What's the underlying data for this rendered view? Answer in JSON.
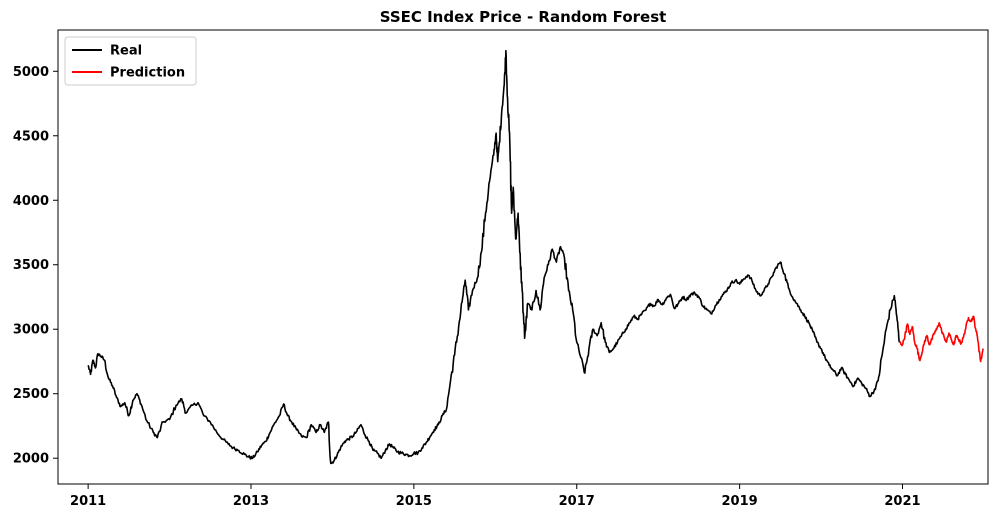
{
  "chart_data": {
    "type": "line",
    "title": "SSEC Index Price - Random Forest",
    "xlabel": "",
    "ylabel": "",
    "xlim": [
      2010.63,
      2022.05
    ],
    "ylim": [
      1800,
      5320
    ],
    "x_ticks": [
      2011,
      2013,
      2015,
      2017,
      2019,
      2021
    ],
    "y_ticks": [
      2000,
      2500,
      3000,
      3500,
      4000,
      4500,
      5000
    ],
    "grid": false,
    "legend_position": "top-left",
    "series": [
      {
        "name": "Real",
        "color": "#000000",
        "points": [
          [
            2011.0,
            2720
          ],
          [
            2011.03,
            2650
          ],
          [
            2011.06,
            2760
          ],
          [
            2011.09,
            2700
          ],
          [
            2011.12,
            2810
          ],
          [
            2011.16,
            2790
          ],
          [
            2011.2,
            2760
          ],
          [
            2011.25,
            2620
          ],
          [
            2011.3,
            2560
          ],
          [
            2011.35,
            2470
          ],
          [
            2011.4,
            2400
          ],
          [
            2011.45,
            2430
          ],
          [
            2011.5,
            2330
          ],
          [
            2011.55,
            2450
          ],
          [
            2011.6,
            2500
          ],
          [
            2011.65,
            2420
          ],
          [
            2011.72,
            2290
          ],
          [
            2011.8,
            2200
          ],
          [
            2011.85,
            2160
          ],
          [
            2011.92,
            2280
          ],
          [
            2012.0,
            2300
          ],
          [
            2012.08,
            2410
          ],
          [
            2012.15,
            2460
          ],
          [
            2012.2,
            2350
          ],
          [
            2012.28,
            2410
          ],
          [
            2012.35,
            2430
          ],
          [
            2012.42,
            2330
          ],
          [
            2012.5,
            2280
          ],
          [
            2012.58,
            2200
          ],
          [
            2012.65,
            2150
          ],
          [
            2012.72,
            2110
          ],
          [
            2012.78,
            2080
          ],
          [
            2012.85,
            2060
          ],
          [
            2012.92,
            2030
          ],
          [
            2012.97,
            2010
          ],
          [
            2013.02,
            2000
          ],
          [
            2013.08,
            2050
          ],
          [
            2013.13,
            2100
          ],
          [
            2013.18,
            2130
          ],
          [
            2013.22,
            2180
          ],
          [
            2013.28,
            2260
          ],
          [
            2013.35,
            2330
          ],
          [
            2013.4,
            2420
          ],
          [
            2013.45,
            2330
          ],
          [
            2013.5,
            2280
          ],
          [
            2013.56,
            2220
          ],
          [
            2013.62,
            2170
          ],
          [
            2013.68,
            2160
          ],
          [
            2013.74,
            2260
          ],
          [
            2013.8,
            2200
          ],
          [
            2013.85,
            2260
          ],
          [
            2013.9,
            2200
          ],
          [
            2013.95,
            2280
          ],
          [
            2013.98,
            1960
          ],
          [
            2014.02,
            1980
          ],
          [
            2014.06,
            2030
          ],
          [
            2014.1,
            2080
          ],
          [
            2014.15,
            2130
          ],
          [
            2014.2,
            2150
          ],
          [
            2014.25,
            2170
          ],
          [
            2014.3,
            2210
          ],
          [
            2014.35,
            2260
          ],
          [
            2014.4,
            2180
          ],
          [
            2014.45,
            2130
          ],
          [
            2014.5,
            2060
          ],
          [
            2014.55,
            2040
          ],
          [
            2014.6,
            2000
          ],
          [
            2014.65,
            2060
          ],
          [
            2014.7,
            2110
          ],
          [
            2014.75,
            2080
          ],
          [
            2014.8,
            2050
          ],
          [
            2014.85,
            2040
          ],
          [
            2014.9,
            2030
          ],
          [
            2014.95,
            2020
          ],
          [
            2015.0,
            2040
          ],
          [
            2015.05,
            2040
          ],
          [
            2015.1,
            2080
          ],
          [
            2015.15,
            2120
          ],
          [
            2015.2,
            2170
          ],
          [
            2015.25,
            2220
          ],
          [
            2015.3,
            2260
          ],
          [
            2015.35,
            2330
          ],
          [
            2015.4,
            2380
          ],
          [
            2015.45,
            2600
          ],
          [
            2015.5,
            2800
          ],
          [
            2015.55,
            3020
          ],
          [
            2015.6,
            3250
          ],
          [
            2015.63,
            3380
          ],
          [
            2015.67,
            3150
          ],
          [
            2015.72,
            3300
          ],
          [
            2015.78,
            3400
          ],
          [
            2015.83,
            3600
          ],
          [
            2015.88,
            3900
          ],
          [
            2015.93,
            4150
          ],
          [
            2015.98,
            4350
          ],
          [
            2016.01,
            4520
          ],
          [
            2016.03,
            4300
          ],
          [
            2016.05,
            4450
          ],
          [
            2016.08,
            4700
          ],
          [
            2016.11,
            4900
          ],
          [
            2016.13,
            5160
          ],
          [
            2016.15,
            4800
          ],
          [
            2016.18,
            4400
          ],
          [
            2016.2,
            3900
          ],
          [
            2016.22,
            4100
          ],
          [
            2016.25,
            3700
          ],
          [
            2016.28,
            3900
          ],
          [
            2016.3,
            3600
          ],
          [
            2016.33,
            3300
          ],
          [
            2016.36,
            2930
          ],
          [
            2016.4,
            3200
          ],
          [
            2016.45,
            3150
          ],
          [
            2016.5,
            3300
          ],
          [
            2016.55,
            3150
          ],
          [
            2016.6,
            3400
          ],
          [
            2016.65,
            3500
          ],
          [
            2016.7,
            3620
          ],
          [
            2016.75,
            3520
          ],
          [
            2016.8,
            3640
          ],
          [
            2016.85,
            3550
          ],
          [
            2016.9,
            3300
          ],
          [
            2016.95,
            3150
          ],
          [
            2017.0,
            2900
          ],
          [
            2017.05,
            2780
          ],
          [
            2017.1,
            2660
          ],
          [
            2017.15,
            2850
          ],
          [
            2017.2,
            3000
          ],
          [
            2017.25,
            2950
          ],
          [
            2017.3,
            3050
          ],
          [
            2017.35,
            2900
          ],
          [
            2017.4,
            2820
          ],
          [
            2017.45,
            2850
          ],
          [
            2017.5,
            2900
          ],
          [
            2017.55,
            2950
          ],
          [
            2017.6,
            3000
          ],
          [
            2017.65,
            3050
          ],
          [
            2017.7,
            3100
          ],
          [
            2017.75,
            3080
          ],
          [
            2017.8,
            3120
          ],
          [
            2017.85,
            3150
          ],
          [
            2017.9,
            3200
          ],
          [
            2017.95,
            3180
          ],
          [
            2018.0,
            3230
          ],
          [
            2018.05,
            3190
          ],
          [
            2018.1,
            3240
          ],
          [
            2018.15,
            3270
          ],
          [
            2018.2,
            3160
          ],
          [
            2018.25,
            3200
          ],
          [
            2018.3,
            3250
          ],
          [
            2018.35,
            3230
          ],
          [
            2018.4,
            3270
          ],
          [
            2018.45,
            3280
          ],
          [
            2018.5,
            3250
          ],
          [
            2018.55,
            3180
          ],
          [
            2018.6,
            3150
          ],
          [
            2018.65,
            3120
          ],
          [
            2018.7,
            3180
          ],
          [
            2018.75,
            3230
          ],
          [
            2018.8,
            3270
          ],
          [
            2018.85,
            3310
          ],
          [
            2018.9,
            3360
          ],
          [
            2018.95,
            3380
          ],
          [
            2019.0,
            3350
          ],
          [
            2019.05,
            3390
          ],
          [
            2019.1,
            3420
          ],
          [
            2019.15,
            3380
          ],
          [
            2019.2,
            3300
          ],
          [
            2019.25,
            3260
          ],
          [
            2019.3,
            3300
          ],
          [
            2019.35,
            3350
          ],
          [
            2019.4,
            3410
          ],
          [
            2019.45,
            3480
          ],
          [
            2019.5,
            3520
          ],
          [
            2019.55,
            3430
          ],
          [
            2019.6,
            3320
          ],
          [
            2019.65,
            3250
          ],
          [
            2019.7,
            3200
          ],
          [
            2019.75,
            3150
          ],
          [
            2019.8,
            3100
          ],
          [
            2019.85,
            3050
          ],
          [
            2019.9,
            2980
          ],
          [
            2019.95,
            2900
          ],
          [
            2020.0,
            2850
          ],
          [
            2020.05,
            2780
          ],
          [
            2020.1,
            2720
          ],
          [
            2020.15,
            2680
          ],
          [
            2020.2,
            2640
          ],
          [
            2020.25,
            2700
          ],
          [
            2020.3,
            2650
          ],
          [
            2020.35,
            2600
          ],
          [
            2020.4,
            2560
          ],
          [
            2020.45,
            2620
          ],
          [
            2020.5,
            2580
          ],
          [
            2020.55,
            2540
          ],
          [
            2020.6,
            2480
          ],
          [
            2020.65,
            2520
          ],
          [
            2020.7,
            2600
          ],
          [
            2020.75,
            2800
          ],
          [
            2020.8,
            3000
          ],
          [
            2020.85,
            3150
          ],
          [
            2020.9,
            3260
          ],
          [
            2020.93,
            3100
          ],
          [
            2020.96,
            2900
          ]
        ]
      },
      {
        "name": "Prediction",
        "color": "#ff0000",
        "points": [
          [
            2020.96,
            2900
          ],
          [
            2021.0,
            2880
          ],
          [
            2021.03,
            2950
          ],
          [
            2021.06,
            3040
          ],
          [
            2021.09,
            2960
          ],
          [
            2021.12,
            3020
          ],
          [
            2021.15,
            2900
          ],
          [
            2021.18,
            2850
          ],
          [
            2021.21,
            2760
          ],
          [
            2021.24,
            2820
          ],
          [
            2021.27,
            2900
          ],
          [
            2021.3,
            2950
          ],
          [
            2021.33,
            2880
          ],
          [
            2021.36,
            2920
          ],
          [
            2021.39,
            2970
          ],
          [
            2021.42,
            3000
          ],
          [
            2021.45,
            3050
          ],
          [
            2021.48,
            2990
          ],
          [
            2021.51,
            2940
          ],
          [
            2021.54,
            2900
          ],
          [
            2021.57,
            2970
          ],
          [
            2021.6,
            2920
          ],
          [
            2021.63,
            2880
          ],
          [
            2021.66,
            2950
          ],
          [
            2021.69,
            2920
          ],
          [
            2021.72,
            2890
          ],
          [
            2021.75,
            2940
          ],
          [
            2021.78,
            3020
          ],
          [
            2021.81,
            3090
          ],
          [
            2021.84,
            3060
          ],
          [
            2021.87,
            3100
          ],
          [
            2021.9,
            3000
          ],
          [
            2021.93,
            2900
          ],
          [
            2021.96,
            2750
          ],
          [
            2021.99,
            2850
          ]
        ]
      }
    ]
  },
  "chart_mapping_note_excluded": null
}
